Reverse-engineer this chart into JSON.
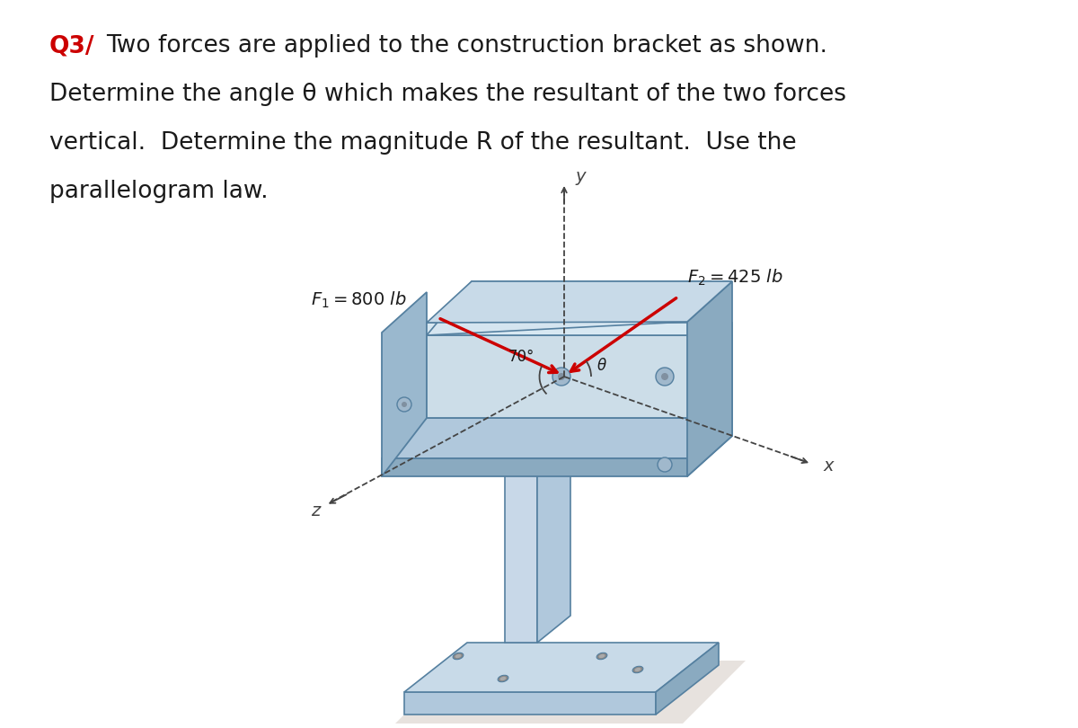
{
  "page_bg": "#ffffff",
  "title_q": "Q3/",
  "title_q_color": "#cc0000",
  "line1_prefix": "Q3/ ",
  "line1_rest": "Two forces are applied to the construction bracket as shown.",
  "line2": "Determine the angle θ which makes the resultant of the two forces",
  "line3": "vertical.  Determine the magnitude R of the resultant.  Use the",
  "line4": "parallelogram law.",
  "F1_label": "$F_1 = 800$ lb",
  "F2_label": "$F_2 = 425$ lb",
  "angle_label": "70°",
  "theta_label": "θ",
  "y_label": "y",
  "x_label": "x",
  "z_label": "z",
  "col_light": "#c8dae8",
  "col_mid": "#b0c8dc",
  "col_dark": "#8aaac0",
  "col_darker": "#6090b0",
  "col_edge": "#5580a0",
  "col_shadow": "#d0c8c0",
  "arrow_color": "#cc0000",
  "text_color": "#1a1a1a",
  "axis_color": "#444444",
  "font_size_body": 19,
  "font_size_label": 14
}
